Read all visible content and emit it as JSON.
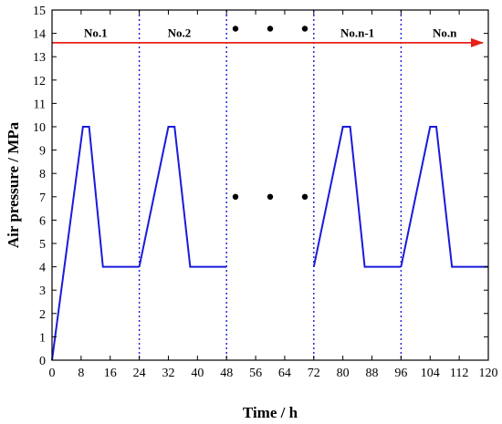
{
  "chart_data": {
    "type": "line",
    "title": "",
    "xlabel": "Time / h",
    "ylabel": "Air pressure / MPa",
    "xlim": [
      0,
      120
    ],
    "ylim": [
      0,
      15
    ],
    "x_ticks": [
      0,
      8,
      16,
      24,
      32,
      40,
      48,
      56,
      64,
      72,
      80,
      88,
      96,
      104,
      112,
      120
    ],
    "y_ticks": [
      0,
      1,
      2,
      3,
      4,
      5,
      6,
      7,
      8,
      9,
      10,
      11,
      12,
      13,
      14,
      15
    ],
    "grid": false,
    "series": [
      {
        "color": "#1a1adc",
        "segments": [
          [
            [
              0,
              0
            ],
            [
              8.5,
              10
            ],
            [
              10.2,
              10
            ],
            [
              14,
              4
            ],
            [
              24,
              4
            ]
          ],
          [
            [
              24,
              4
            ],
            [
              32,
              10
            ],
            [
              33.7,
              10
            ],
            [
              38,
              4
            ],
            [
              48,
              4
            ]
          ],
          [
            [
              72,
              4
            ],
            [
              80,
              10
            ],
            [
              82,
              10
            ],
            [
              86,
              4
            ],
            [
              96,
              4
            ]
          ],
          [
            [
              96,
              4
            ],
            [
              104,
              10
            ],
            [
              105.7,
              10
            ],
            [
              110,
              4
            ],
            [
              120,
              4
            ]
          ]
        ]
      }
    ],
    "cycle_boundaries": [
      24,
      48,
      72,
      96
    ],
    "boundary_color": "#1a1adc",
    "phase_labels": [
      {
        "text": "No.1",
        "x": 12,
        "y": 14
      },
      {
        "text": "No.2",
        "x": 35,
        "y": 14
      },
      {
        "text": "No.n-1",
        "x": 84,
        "y": 14
      },
      {
        "text": "No.n",
        "x": 108,
        "y": 14
      }
    ],
    "ellipsis_markers": [
      {
        "x": 60,
        "y": 14.2
      },
      {
        "x": 60,
        "y": 7
      }
    ],
    "time_arrow": {
      "y": 13.6,
      "x_start": 0,
      "x_end": 120,
      "color": "#e8201a"
    }
  }
}
